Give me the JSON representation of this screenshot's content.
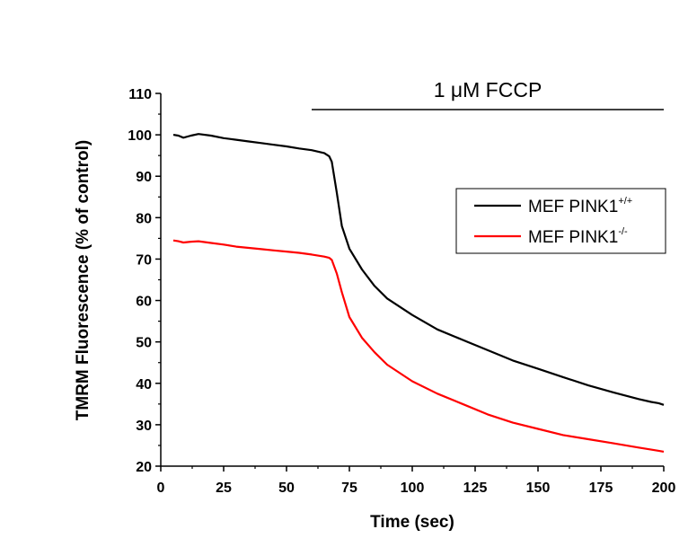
{
  "chart_data": {
    "type": "line",
    "title": "",
    "xlabel": "Time (sec)",
    "ylabel": "TMRM Fluorescence (% of control)",
    "xlim": [
      0,
      200
    ],
    "ylim": [
      20,
      110
    ],
    "xticks": [
      0,
      25,
      50,
      75,
      100,
      125,
      150,
      175,
      200
    ],
    "yticks": [
      20,
      30,
      40,
      50,
      60,
      70,
      80,
      90,
      100,
      110
    ],
    "grid": false,
    "legend_placement": "right",
    "annotation": {
      "text": "1 μM FCCP",
      "x_start": 60,
      "x_end": 200
    },
    "series": [
      {
        "name": "MEF PINK1",
        "superscript": "+/+",
        "color": "#000000",
        "x": [
          5,
          7,
          9,
          12,
          15,
          20,
          25,
          30,
          35,
          40,
          45,
          50,
          55,
          60,
          65,
          67,
          68,
          70,
          72,
          75,
          80,
          85,
          90,
          100,
          110,
          120,
          130,
          140,
          150,
          160,
          170,
          180,
          190,
          195,
          198,
          200
        ],
        "y": [
          100,
          99.8,
          99.3,
          99.8,
          100.2,
          99.8,
          99.2,
          98.8,
          98.4,
          98.0,
          97.6,
          97.2,
          96.7,
          96.3,
          95.6,
          94.8,
          93.5,
          86.0,
          78.0,
          72.5,
          67.5,
          63.5,
          60.5,
          56.5,
          53.0,
          50.5,
          48.0,
          45.5,
          43.5,
          41.5,
          39.5,
          37.8,
          36.2,
          35.5,
          35.2,
          34.8
        ]
      },
      {
        "name": "MEF PINK1",
        "superscript": "-/-",
        "color": "#ff0000",
        "x": [
          5,
          7,
          9,
          12,
          15,
          20,
          25,
          30,
          35,
          40,
          45,
          50,
          55,
          60,
          65,
          67,
          68,
          70,
          72,
          75,
          80,
          85,
          90,
          100,
          110,
          120,
          130,
          140,
          150,
          160,
          170,
          180,
          190,
          195,
          198,
          200
        ],
        "y": [
          74.5,
          74.3,
          74.0,
          74.2,
          74.3,
          73.9,
          73.5,
          73.0,
          72.7,
          72.4,
          72.1,
          71.8,
          71.5,
          71.1,
          70.6,
          70.3,
          69.8,
          66.5,
          62.0,
          56.0,
          51.0,
          47.5,
          44.5,
          40.5,
          37.5,
          35.0,
          32.5,
          30.5,
          29.0,
          27.5,
          26.5,
          25.5,
          24.5,
          24.0,
          23.7,
          23.5
        ]
      }
    ]
  }
}
